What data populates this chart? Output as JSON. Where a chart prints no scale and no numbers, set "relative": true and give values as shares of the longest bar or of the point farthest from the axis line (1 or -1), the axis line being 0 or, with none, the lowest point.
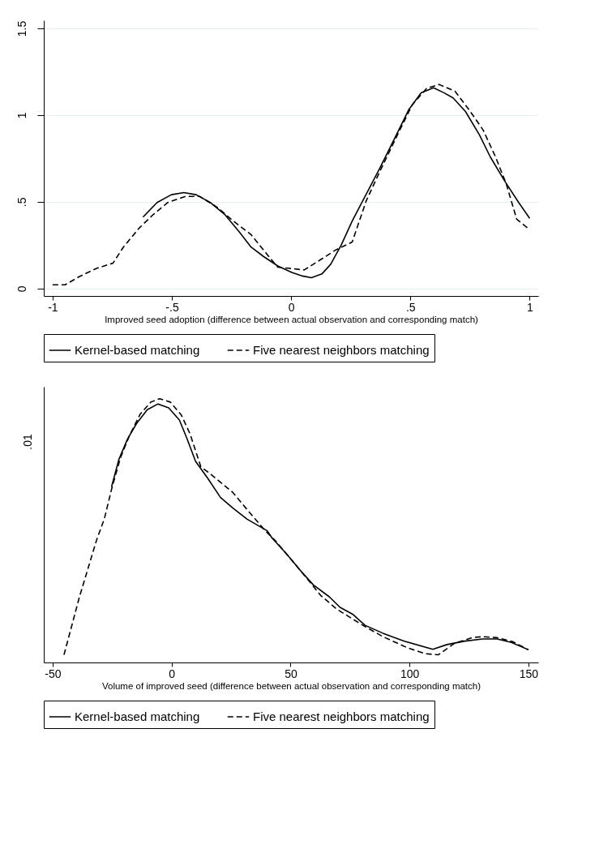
{
  "chart_data": [
    {
      "type": "line",
      "xlabel": "Improved seed adoption (difference between actual observation and corresponding match)",
      "xlim": [
        -1.037,
        1.036
      ],
      "ylim": [
        -0.043,
        1.547
      ],
      "xticks": [
        -1,
        {
          "value": -0.5,
          "label": "-.5"
        },
        0,
        {
          "value": 0.5,
          "label": ".5"
        },
        1
      ],
      "yticks": [
        0,
        {
          "value": 0.5,
          "label": ".5"
        },
        1,
        1.5
      ],
      "grid": "y",
      "legend": "bottom",
      "series": [
        {
          "name": "Kernel-based matching",
          "color": "#000000",
          "line_style": "solid",
          "x": [
            -0.621,
            -0.562,
            -0.502,
            -0.45,
            -0.398,
            -0.339,
            -0.279,
            -0.22,
            -0.168,
            -0.116,
            -0.056,
            0.003,
            0.048,
            0.085,
            0.129,
            0.166,
            0.211,
            0.256,
            0.315,
            0.374,
            0.434,
            0.493,
            0.545,
            0.597,
            0.642,
            0.679,
            0.731,
            0.79,
            0.835,
            0.894,
            0.954,
            1.0
          ],
          "values": [
            0.412,
            0.496,
            0.541,
            0.553,
            0.541,
            0.496,
            0.428,
            0.331,
            0.239,
            0.185,
            0.13,
            0.093,
            0.072,
            0.062,
            0.084,
            0.14,
            0.253,
            0.389,
            0.545,
            0.7,
            0.866,
            1.031,
            1.128,
            1.158,
            1.128,
            1.099,
            1.021,
            0.885,
            0.759,
            0.623,
            0.496,
            0.405
          ]
        },
        {
          "name": "Five nearest neighbors matching",
          "color": "#000000",
          "line_style": "dashed",
          "x": [
            -1.0,
            -0.948,
            -0.889,
            -0.814,
            -0.747,
            -0.703,
            -0.636,
            -0.577,
            -0.517,
            -0.443,
            -0.383,
            -0.309,
            -0.242,
            -0.168,
            -0.094,
            -0.056,
            -0.012,
            0.055,
            0.122,
            0.189,
            0.256,
            0.315,
            0.374,
            0.449,
            0.508,
            0.568,
            0.62,
            0.687,
            0.746,
            0.805,
            0.857,
            0.902,
            0.946,
            1.0
          ],
          "values": [
            0.021,
            0.021,
            0.068,
            0.117,
            0.146,
            0.239,
            0.35,
            0.428,
            0.496,
            0.531,
            0.531,
            0.467,
            0.389,
            0.311,
            0.185,
            0.123,
            0.117,
            0.107,
            0.165,
            0.224,
            0.268,
            0.506,
            0.681,
            0.895,
            1.06,
            1.154,
            1.177,
            1.138,
            1.031,
            0.914,
            0.759,
            0.603,
            0.399,
            0.34
          ]
        }
      ]
    },
    {
      "type": "line",
      "relative": true,
      "xlabel": "Volume of improved seed (difference between actual observation and corresponding match)",
      "xlim": [
        -53.7,
        154.1
      ],
      "xticks": [
        -50,
        0,
        50,
        100,
        150
      ],
      "annotations": [
        ".01"
      ],
      "legend": "bottom",
      "series": [
        {
          "name": "Kernel-based matching",
          "color": "#000000",
          "line_style": "solid",
          "x": [
            -25.2,
            -22.2,
            -18.5,
            -14.7,
            -10.2,
            -5.7,
            -1.2,
            3.3,
            6.3,
            10.1,
            15.3,
            20.6,
            25.8,
            31.8,
            40.1,
            42.3,
            48.3,
            54.3,
            59.6,
            66.3,
            70.8,
            76.1,
            81.3,
            88.8,
            97.8,
            109.8,
            115.8,
            123.3,
            130.8,
            136.8,
            142.8,
            150
          ],
          "values": [
            0.666,
            0.768,
            0.847,
            0.906,
            0.958,
            0.98,
            0.965,
            0.919,
            0.853,
            0.762,
            0.697,
            0.625,
            0.585,
            0.543,
            0.5,
            0.471,
            0.412,
            0.347,
            0.294,
            0.249,
            0.209,
            0.183,
            0.141,
            0.111,
            0.081,
            0.05,
            0.068,
            0.081,
            0.089,
            0.089,
            0.076,
            0.048
          ]
        },
        {
          "name": "Five nearest neighbors matching",
          "color": "#000000",
          "line_style": "dashed",
          "x": [
            -45.2,
            -38.7,
            -31.5,
            -28.2,
            -25.2,
            -21.5,
            -17.7,
            -13.2,
            -8.7,
            -5.0,
            -0.5,
            4.1,
            7.8,
            12.3,
            16.1,
            20.6,
            25.8,
            31.8,
            39.3,
            43.8,
            51.3,
            57.3,
            62.6,
            69.3,
            79.8,
            88.8,
            99.3,
            106.8,
            112.1,
            118.8,
            126.3,
            130.8,
            136.8,
            143.6,
            150
          ],
          "values": [
            0.029,
            0.249,
            0.464,
            0.546,
            0.657,
            0.775,
            0.86,
            0.941,
            0.987,
            1.0,
            0.987,
            0.938,
            0.866,
            0.742,
            0.716,
            0.683,
            0.644,
            0.579,
            0.5,
            0.46,
            0.379,
            0.314,
            0.255,
            0.203,
            0.144,
            0.098,
            0.055,
            0.033,
            0.029,
            0.072,
            0.094,
            0.098,
            0.094,
            0.078,
            0.048
          ]
        }
      ]
    }
  ]
}
